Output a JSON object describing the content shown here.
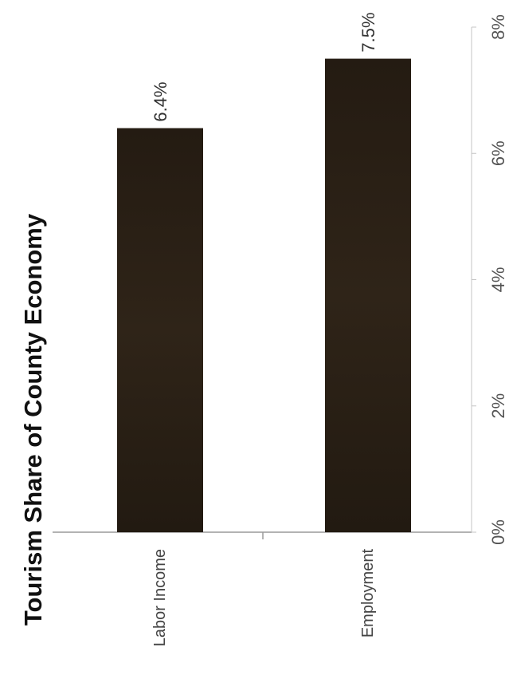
{
  "chart_data": {
    "type": "bar",
    "orientation": "horizontal",
    "title": "Tourism Share of County Economy",
    "categories": [
      "Labor Income",
      "Employment"
    ],
    "values": [
      6.4,
      7.5
    ],
    "value_labels": [
      "6.4%",
      "7.5%"
    ],
    "xlim": [
      0,
      8
    ],
    "ticks": [
      0,
      2,
      4,
      6,
      8
    ],
    "tick_labels": [
      "0%",
      "2%",
      "4%",
      "6%",
      "8%"
    ],
    "grid": false,
    "legend": "none",
    "bar_color": "#2a2116"
  }
}
